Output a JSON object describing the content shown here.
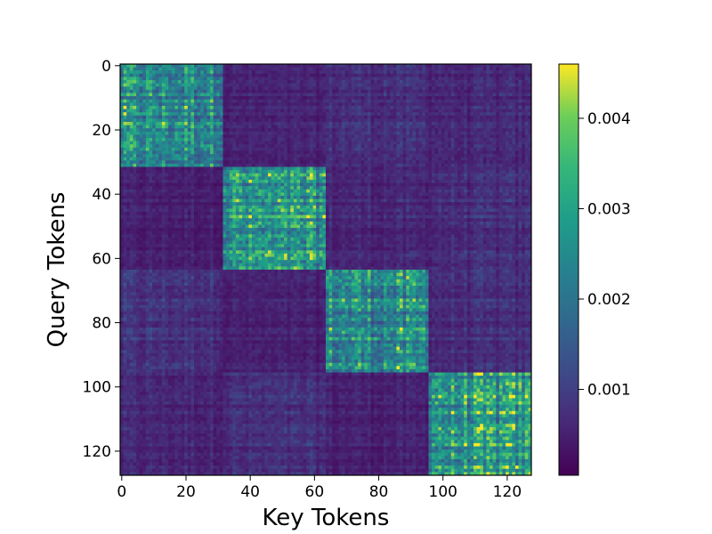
{
  "chart_data": {
    "type": "heatmap",
    "title": "",
    "xlabel": "Key Tokens",
    "ylabel": "Query Tokens",
    "size": 128,
    "block_size": 32,
    "num_blocks": 4,
    "x_ticks": [
      0,
      20,
      40,
      60,
      80,
      100,
      120
    ],
    "y_ticks": [
      0,
      20,
      40,
      60,
      80,
      100,
      120
    ],
    "colorbar": {
      "min": 5e-05,
      "max": 0.0046,
      "ticks": [
        0.001,
        0.002,
        0.003,
        0.004
      ],
      "tick_labels": [
        "0.001",
        "0.002",
        "0.003",
        "0.004"
      ],
      "colormap": "viridis",
      "location": "right"
    },
    "block_means": [
      [
        0.0024,
        0.0005,
        0.0007,
        0.0006
      ],
      [
        0.0005,
        0.0027,
        0.0006,
        0.0007
      ],
      [
        0.0008,
        0.0005,
        0.0025,
        0.0007
      ],
      [
        0.0006,
        0.0007,
        0.0005,
        0.0027
      ]
    ],
    "hotspots": [
      {
        "query": 67,
        "key": 86,
        "value": 0.0042
      },
      {
        "query": 69,
        "key": 89,
        "value": 0.0038
      },
      {
        "query": 88,
        "key": 86,
        "value": 0.0045
      },
      {
        "query": 94,
        "key": 86,
        "value": 0.0046
      },
      {
        "query": 102,
        "key": 110,
        "value": 0.004
      },
      {
        "query": 107,
        "key": 127,
        "value": 0.0042
      },
      {
        "query": 115,
        "key": 126,
        "value": 0.0038
      },
      {
        "query": 125,
        "key": 123,
        "value": 0.0046
      }
    ],
    "grid": false
  }
}
